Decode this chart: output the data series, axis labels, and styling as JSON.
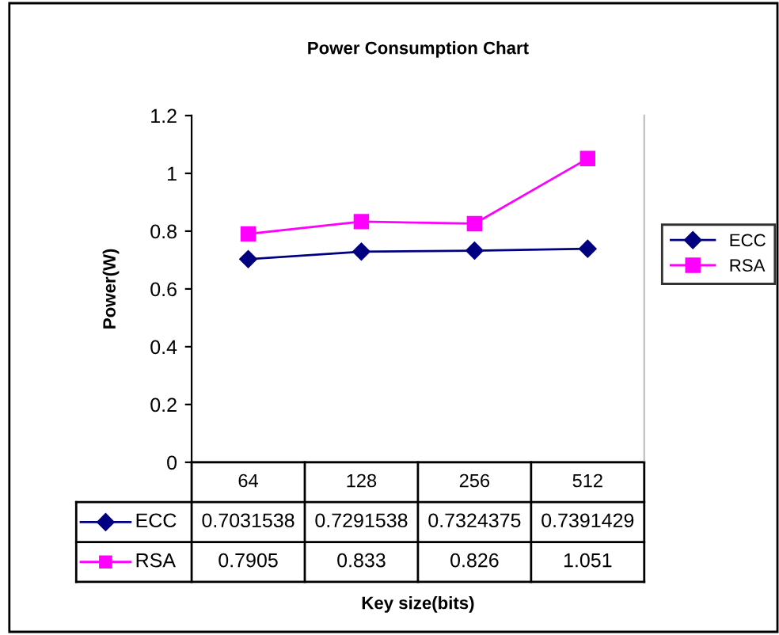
{
  "chart_data": {
    "type": "line",
    "title": "Power Consumption Chart",
    "annotations": [
      "Key size(bits)"
    ],
    "ylabel": "Power(W)",
    "categories": [
      "64",
      "128",
      "256",
      "512"
    ],
    "series": [
      {
        "name": "ECC",
        "color": "#000080",
        "marker": "diamond",
        "values": [
          0.7031538,
          0.7291538,
          0.7324375,
          0.7391429
        ]
      },
      {
        "name": "RSA",
        "color": "#ff00ff",
        "marker": "square",
        "values": [
          0.7905,
          0.833,
          0.826,
          1.051
        ]
      }
    ],
    "ylim": [
      0,
      1.2
    ],
    "yticks": [
      0,
      0.2,
      0.4,
      0.6,
      0.8,
      1,
      1.2
    ],
    "grid": false,
    "legend": "right",
    "data_labels": true
  }
}
